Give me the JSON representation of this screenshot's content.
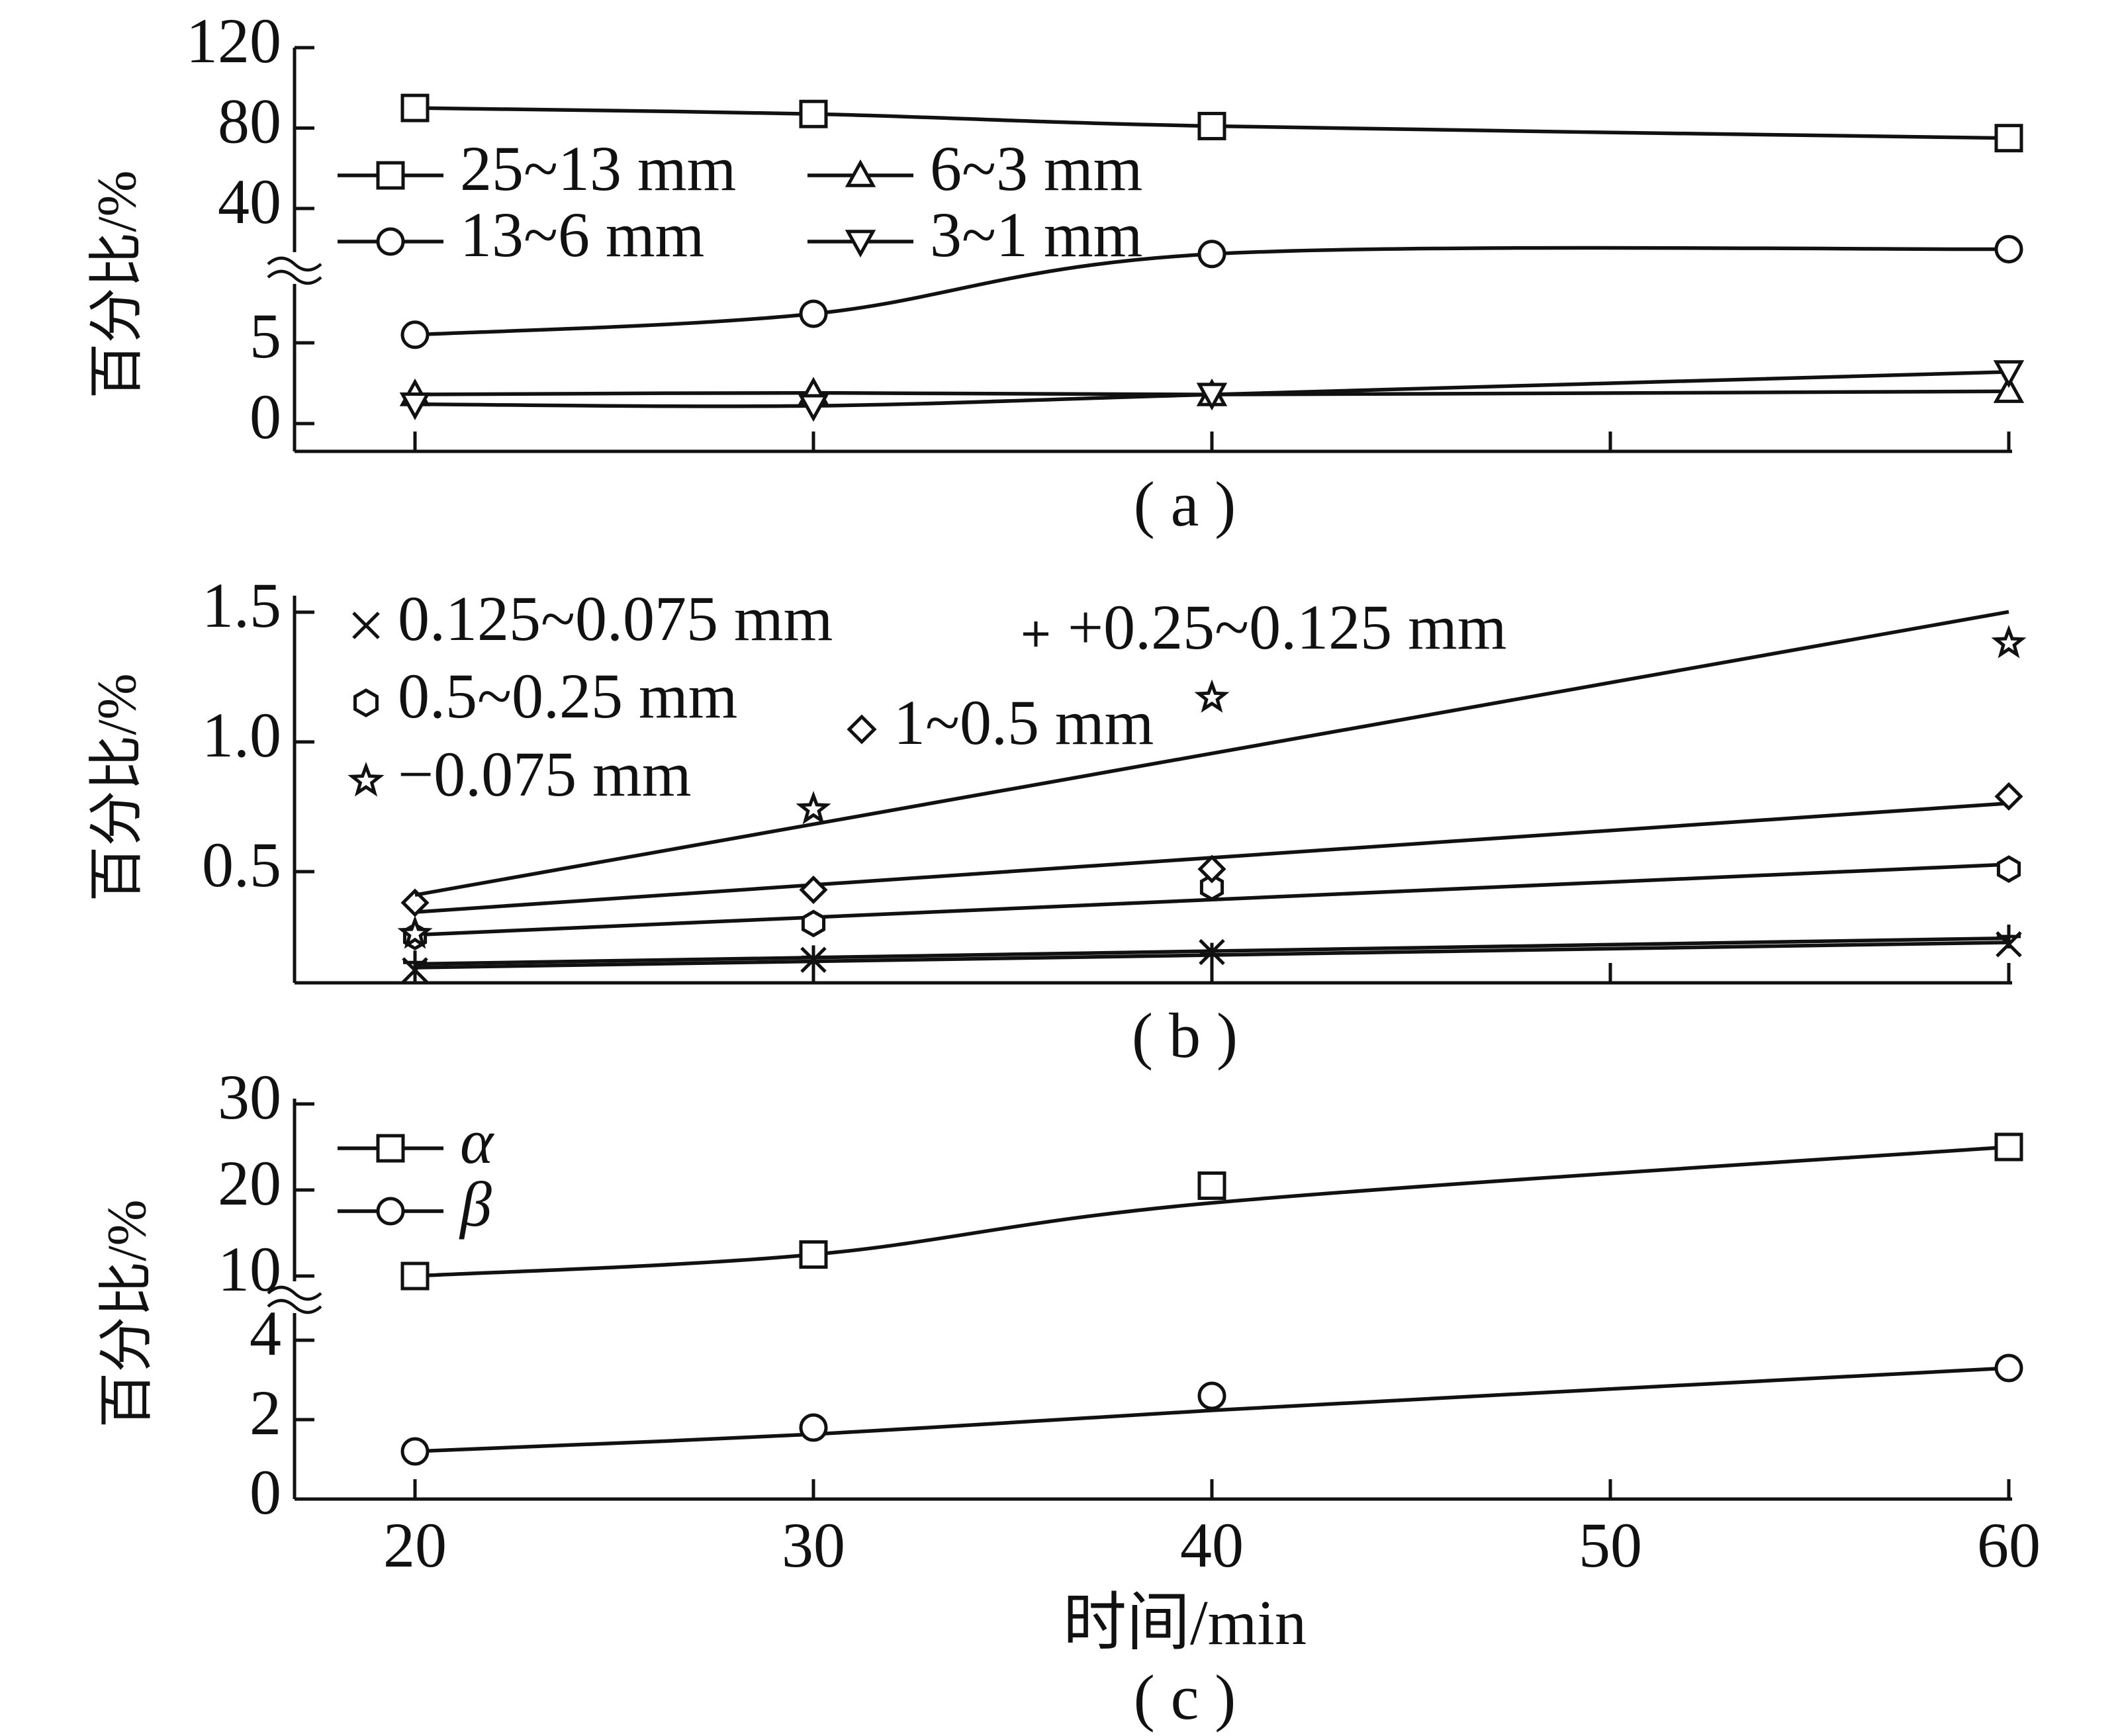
{
  "chart_data": [
    {
      "type": "line",
      "id": "a",
      "caption": "( a )",
      "ylabel": "百分比/%",
      "broken_axis": true,
      "x_ticks": [
        20,
        30,
        40,
        50,
        60
      ],
      "y_ticks_upper": [
        "120",
        "80",
        "40"
      ],
      "y_ticks_lower": [
        "5",
        "0"
      ],
      "ylim_upper": [
        30,
        120
      ],
      "ylim_lower": [
        -2,
        9
      ],
      "legend": "top-left",
      "series": [
        {
          "name": "25~13 mm",
          "marker": "square",
          "x": [
            20,
            30,
            40,
            60
          ],
          "y": [
            90,
            87,
            81,
            75
          ]
        },
        {
          "name": "13~6 mm",
          "marker": "circle",
          "x": [
            20,
            30,
            40,
            60
          ],
          "y": [
            5.5,
            6.8,
            10.5,
            10.8
          ]
        },
        {
          "name": "6~3 mm",
          "marker": "triangle-up",
          "x": [
            20,
            30,
            40,
            60
          ],
          "y": [
            1.8,
            1.9,
            1.8,
            2.0
          ]
        },
        {
          "name": "3~1 mm",
          "marker": "triangle-down",
          "x": [
            20,
            30,
            40,
            60
          ],
          "y": [
            1.2,
            1.1,
            1.8,
            3.2
          ]
        }
      ]
    },
    {
      "type": "line",
      "id": "b",
      "caption": "( b )",
      "ylabel": "百分比/%",
      "x_ticks": [
        20,
        30,
        40,
        50,
        60
      ],
      "y_ticks": [
        "1.5",
        "1.0",
        "0.5"
      ],
      "ylim": [
        0.1,
        1.5
      ],
      "legend": "top-left",
      "series": [
        {
          "name": "0.125~0.075 mm",
          "marker": "x",
          "x": [
            20,
            30,
            40,
            60
          ],
          "y": [
            0.12,
            0.16,
            0.19,
            0.22
          ]
        },
        {
          "name": "+0.25~0.125 mm",
          "marker": "plus",
          "x": [
            20,
            30,
            40,
            60
          ],
          "y": [
            0.15,
            0.17,
            0.18,
            0.25
          ]
        },
        {
          "name": "0.5~0.25 mm",
          "marker": "hexagon",
          "x": [
            20,
            30,
            40,
            60
          ],
          "y": [
            0.25,
            0.3,
            0.44,
            0.51
          ]
        },
        {
          "name": "1~0.5 mm",
          "marker": "diamond",
          "x": [
            20,
            30,
            40,
            60
          ],
          "y": [
            0.38,
            0.43,
            0.51,
            0.79
          ]
        },
        {
          "name": "−0.075 mm",
          "marker": "star",
          "x": [
            20,
            30,
            40,
            60
          ],
          "y": [
            0.26,
            0.74,
            1.17,
            1.38
          ]
        }
      ]
    },
    {
      "type": "line",
      "id": "c",
      "caption": "( c )",
      "ylabel": "百分比/%",
      "xlabel": "时间/min",
      "broken_axis": true,
      "x_ticks": [
        20,
        30,
        40,
        50,
        60
      ],
      "x_tick_labels": [
        "20",
        "30",
        "40",
        "50",
        "60"
      ],
      "y_ticks_upper": [
        "30",
        "20",
        "10"
      ],
      "y_ticks_lower": [
        "4",
        "2",
        "0"
      ],
      "ylim_upper": [
        8,
        30
      ],
      "ylim_lower": [
        0,
        5
      ],
      "legend": "top-left",
      "series": [
        {
          "name": "α",
          "marker": "square",
          "x": [
            20,
            30,
            40,
            60
          ],
          "y": [
            10,
            12.5,
            20.5,
            25
          ]
        },
        {
          "name": "β",
          "marker": "circle",
          "x": [
            20,
            30,
            40,
            60
          ],
          "y": [
            1.2,
            1.8,
            2.6,
            3.3
          ]
        }
      ]
    }
  ]
}
